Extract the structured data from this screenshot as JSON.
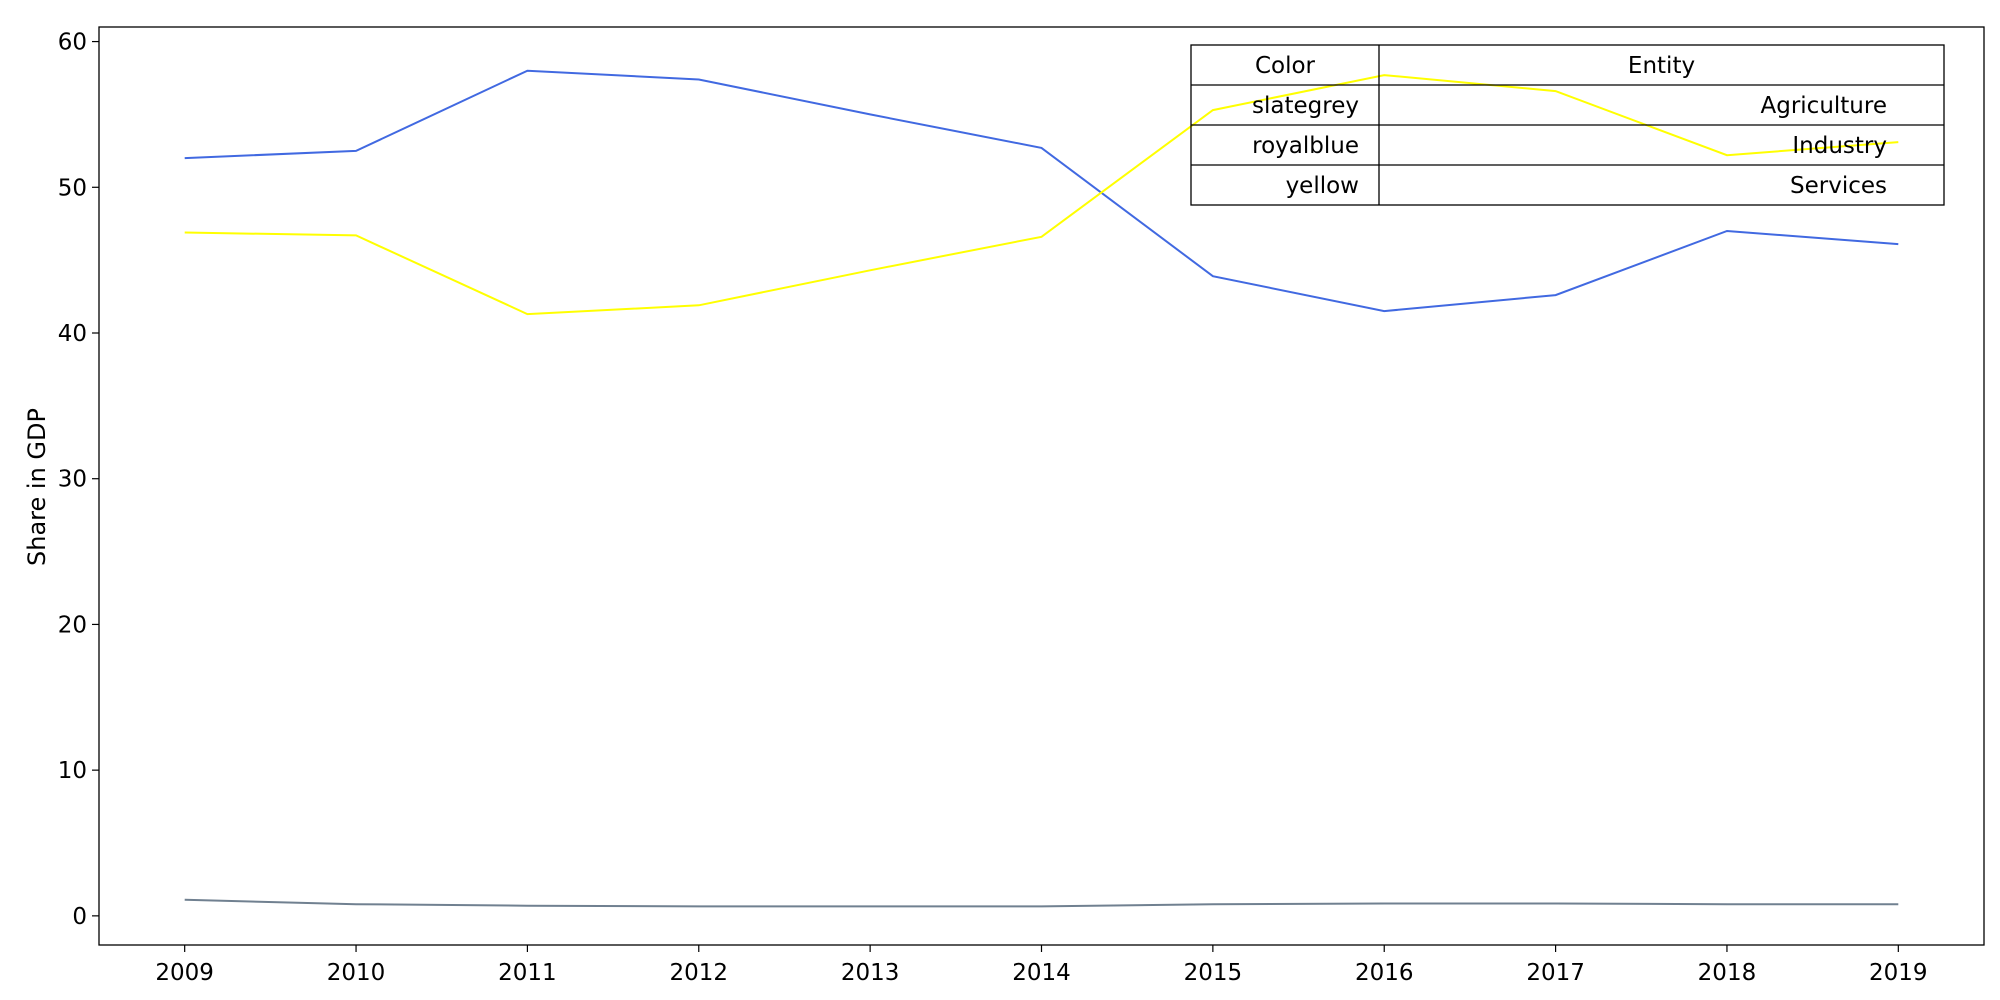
{
  "chart_data": {
    "type": "line",
    "xlabel": "",
    "ylabel": "Share in GDP",
    "x": [
      2009,
      2010,
      2011,
      2012,
      2013,
      2014,
      2015,
      2016,
      2017,
      2018,
      2019
    ],
    "xlim": [
      2008.5,
      2019.5
    ],
    "ylim": [
      -2,
      61
    ],
    "yticks": [
      0,
      10,
      20,
      30,
      40,
      50,
      60
    ],
    "grid": false,
    "series": [
      {
        "name": "Agriculture",
        "color": "#708090",
        "values": [
          1.1,
          0.8,
          0.7,
          0.65,
          0.65,
          0.65,
          0.8,
          0.85,
          0.85,
          0.8,
          0.8
        ]
      },
      {
        "name": "Industry",
        "color": "#4169e1",
        "values": [
          52.0,
          52.5,
          58.0,
          57.4,
          55.0,
          52.7,
          43.9,
          41.5,
          42.6,
          47.0,
          46.1
        ]
      },
      {
        "name": "Services",
        "color": "#ffff00",
        "values": [
          46.9,
          46.7,
          41.3,
          41.9,
          44.3,
          46.6,
          55.3,
          57.7,
          56.6,
          52.2,
          53.1
        ]
      }
    ],
    "legend": {
      "placement": "top-right",
      "header": [
        "Color",
        "Entity"
      ],
      "rows": [
        [
          "slategrey",
          "Agriculture"
        ],
        [
          "royalblue",
          "Industry"
        ],
        [
          "yellow",
          "Services"
        ]
      ]
    }
  }
}
